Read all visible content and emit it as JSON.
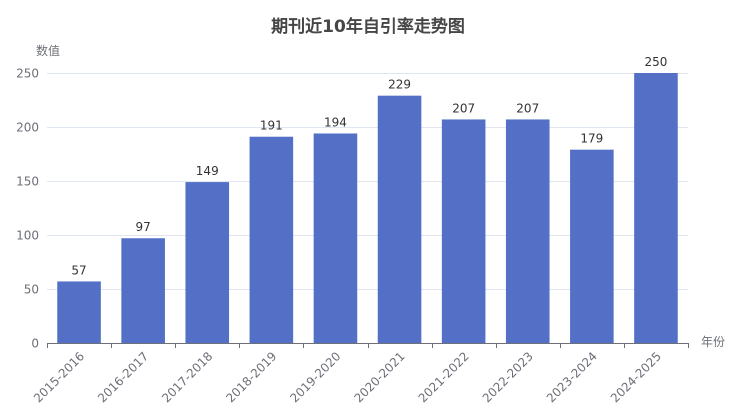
{
  "chart_data": {
    "type": "bar",
    "title": "期刊近10年自引率走势图",
    "xlabel": "年份",
    "ylabel": "数值",
    "categories": [
      "2015-2016",
      "2016-2017",
      "2017-2018",
      "2018-2019",
      "2019-2020",
      "2020-2021",
      "2021-2022",
      "2022-2023",
      "2023-2024",
      "2024-2025"
    ],
    "values": [
      57,
      97,
      149,
      191,
      194,
      229,
      207,
      207,
      179,
      250
    ],
    "ylim": [
      0,
      250
    ],
    "yticks": [
      0,
      50,
      100,
      150,
      200,
      250
    ],
    "grid": true,
    "legend": "none",
    "data_labels": true,
    "colors": {
      "bar": "#5470c6"
    }
  }
}
